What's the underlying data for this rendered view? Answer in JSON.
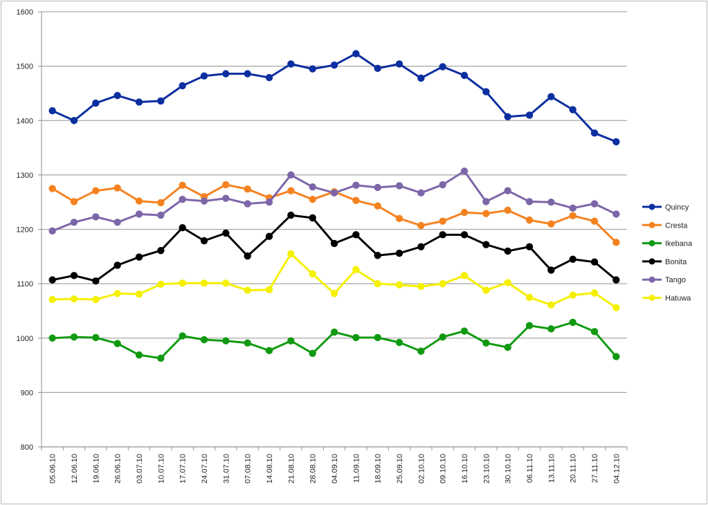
{
  "chart_data": {
    "type": "line",
    "title": "",
    "xlabel": "",
    "ylabel": "",
    "ylim": [
      800,
      1600
    ],
    "yticks": [
      800,
      900,
      1000,
      1100,
      1200,
      1300,
      1400,
      1500,
      1600
    ],
    "grid": "horizontal",
    "legend_position": "right",
    "categories": [
      "05.06.10",
      "12.06.10",
      "19.06.10",
      "26.06.10",
      "03.07.10",
      "10.07.10",
      "17.07.10",
      "24.07.10",
      "31.07.10",
      "07.08.10",
      "14.08.10",
      "21.08.10",
      "28.08.10",
      "04.09.10",
      "11.09.10",
      "18.09.10",
      "25.09.10",
      "02.10.10",
      "09.10.10",
      "16.10.10",
      "23.10.10",
      "30.10.10",
      "06.11.10",
      "13.11.10",
      "20.11.10",
      "27.11.10",
      "04.12.10"
    ],
    "series": [
      {
        "name": "Quincy",
        "color": "#0b2ea0",
        "values": [
          1418,
          1400,
          1432,
          1446,
          1434,
          1436,
          1464,
          1482,
          1486,
          1486,
          1479,
          1504,
          1495,
          1502,
          1523,
          1496,
          1504,
          1478,
          1499,
          1483,
          1453,
          1407,
          1410,
          1444,
          1420,
          1377,
          1361
        ]
      },
      {
        "name": "Cresta",
        "color": "#f58220",
        "values": [
          1275,
          1251,
          1271,
          1276,
          1252,
          1249,
          1281,
          1260,
          1282,
          1274,
          1258,
          1271,
          1255,
          1269,
          1253,
          1243,
          1220,
          1207,
          1215,
          1231,
          1229,
          1235,
          1217,
          1210,
          1225,
          1215,
          1176
        ]
      },
      {
        "name": "Ikebana",
        "color": "#119a11",
        "values": [
          1000,
          1002,
          1001,
          990,
          969,
          963,
          1004,
          997,
          995,
          991,
          977,
          995,
          972,
          1011,
          1001,
          1001,
          992,
          976,
          1002,
          1013,
          991,
          983,
          1023,
          1017,
          1029,
          1012,
          966
        ]
      },
      {
        "name": "Bonita",
        "color": "#000000",
        "values": [
          1107,
          1115,
          1105,
          1134,
          1149,
          1161,
          1203,
          1179,
          1193,
          1151,
          1187,
          1226,
          1221,
          1174,
          1190,
          1152,
          1156,
          1168,
          1190,
          1190,
          1172,
          1160,
          1168,
          1125,
          1145,
          1140,
          1107
        ]
      },
      {
        "name": "Tango",
        "color": "#7d66a8",
        "values": [
          1197,
          1213,
          1223,
          1213,
          1228,
          1226,
          1255,
          1252,
          1257,
          1247,
          1250,
          1300,
          1278,
          1267,
          1281,
          1277,
          1280,
          1267,
          1282,
          1307,
          1251,
          1271,
          1251,
          1250,
          1239,
          1247,
          1228
        ]
      },
      {
        "name": "Hatuwa",
        "color": "#f5f000",
        "values": [
          1071,
          1072,
          1071,
          1082,
          1081,
          1099,
          1101,
          1101,
          1101,
          1088,
          1089,
          1155,
          1118,
          1082,
          1126,
          1100,
          1098,
          1095,
          1100,
          1115,
          1088,
          1102,
          1075,
          1061,
          1079,
          1083,
          1056
        ]
      }
    ]
  }
}
